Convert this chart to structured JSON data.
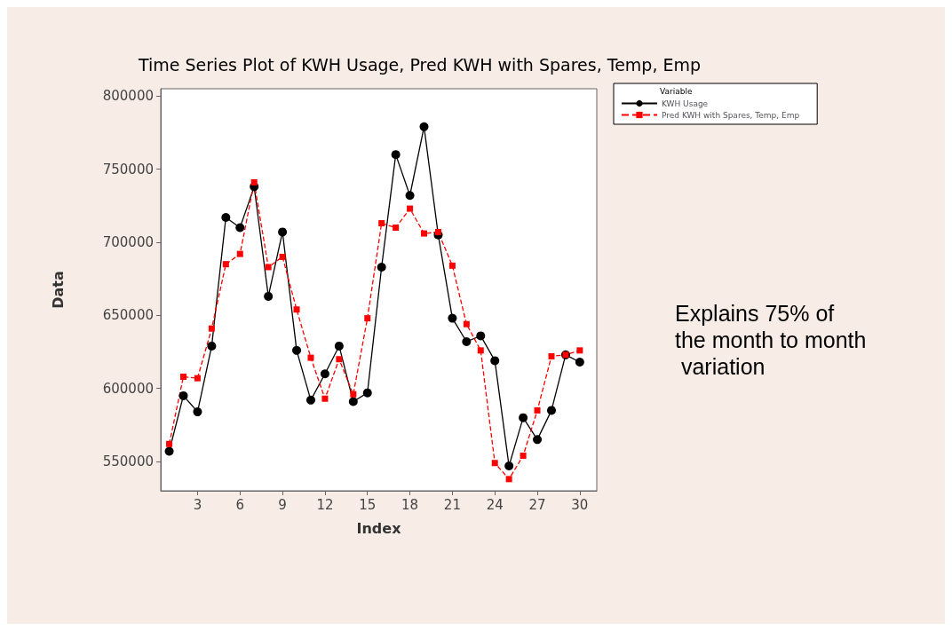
{
  "chart_data": {
    "type": "line",
    "title": "Time Series Plot of KWH Usage, Pred KWH with Spares, Temp, Emp",
    "xlabel": "Index",
    "ylabel": "Data",
    "legend_title": "Variable",
    "x": [
      1,
      2,
      3,
      4,
      5,
      6,
      7,
      8,
      9,
      10,
      11,
      12,
      13,
      14,
      15,
      16,
      17,
      18,
      19,
      20,
      21,
      22,
      23,
      24,
      25,
      26,
      27,
      28,
      29,
      30
    ],
    "series": [
      {
        "name": "KWH Usage",
        "color": "#000000",
        "marker": "circle",
        "line_style": "solid",
        "values": [
          557000,
          595000,
          584000,
          629000,
          717000,
          710000,
          738000,
          663000,
          707000,
          626000,
          592000,
          610000,
          629000,
          591000,
          597000,
          683000,
          760000,
          732000,
          779000,
          705000,
          648000,
          632000,
          636000,
          619000,
          547000,
          580000,
          565000,
          585000,
          623000,
          618000
        ]
      },
      {
        "name": "Pred KWH with Spares, Temp, Emp",
        "color": "#ff0000",
        "marker": "square",
        "line_style": "dashed",
        "values": [
          562000,
          608000,
          607000,
          641000,
          685000,
          692000,
          741000,
          683000,
          690000,
          654000,
          621000,
          593000,
          620000,
          596000,
          648000,
          713000,
          710000,
          723000,
          706000,
          707000,
          684000,
          644000,
          626000,
          549000,
          538000,
          554000,
          585000,
          622000,
          623000,
          626000
        ]
      }
    ],
    "xlim": [
      0.4,
      31.2
    ],
    "xticks": [
      3,
      6,
      9,
      12,
      15,
      18,
      21,
      24,
      27,
      30
    ],
    "ylim": [
      530000,
      805000
    ],
    "yticks": [
      550000,
      600000,
      650000,
      700000,
      750000,
      800000
    ],
    "grid": false,
    "legend": "top right",
    "annotations": [
      "Explains 75% of the month to month variation"
    ]
  }
}
